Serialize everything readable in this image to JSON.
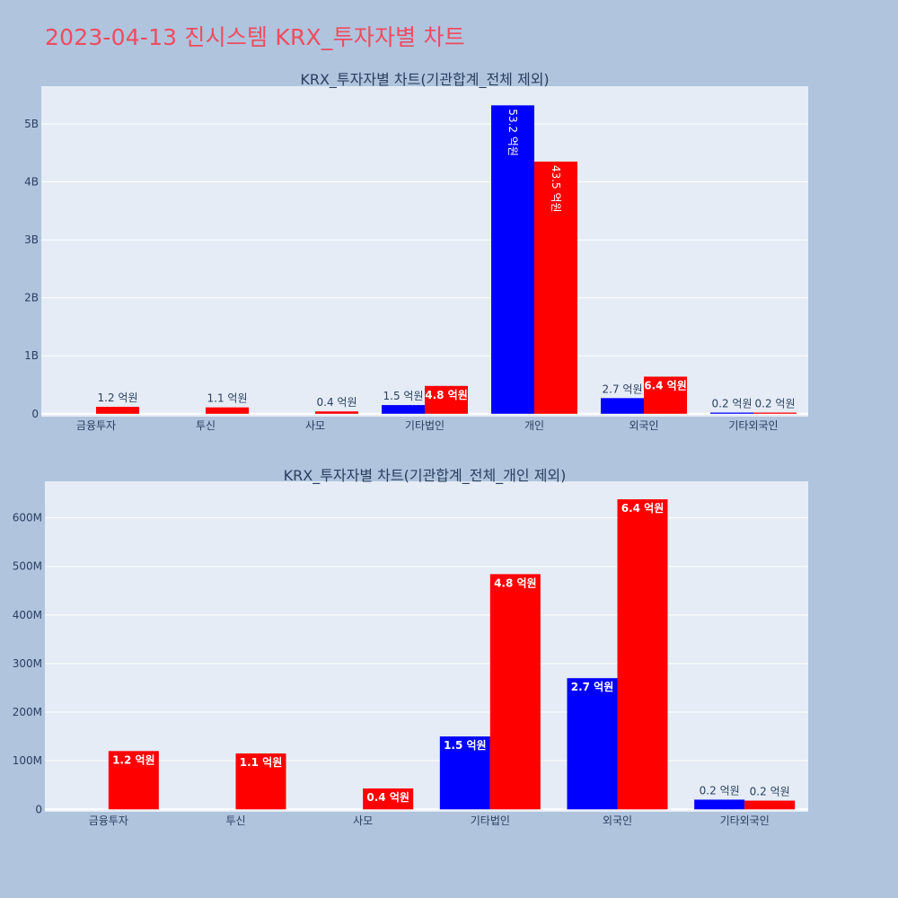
{
  "title": "2023-04-13 진시스템 KRX_투자자별 차트",
  "colors": {
    "background": "#b0c4de",
    "plot_bg": "#e5ecf6",
    "title": "#ef4b5f",
    "sell": "#0000ff",
    "buy": "#ff0000",
    "grid": "#ffffff",
    "text": "#2a3f5f"
  },
  "chart_data": [
    {
      "type": "bar",
      "title": "KRX_투자자별 차트(기관합계_전체 제외)",
      "categories": [
        "금융투자",
        "투신",
        "사모",
        "기타법인",
        "개인",
        "외국인",
        "기타외국인"
      ],
      "yticks": [
        0,
        1000000000,
        2000000000,
        3000000000,
        4000000000,
        5000000000
      ],
      "ytick_labels": [
        "0",
        "1B",
        "2B",
        "3B",
        "4B",
        "5B"
      ],
      "ylim": [
        -50000000,
        5650000000
      ],
      "legend": "none",
      "series": [
        {
          "color": "#0000ff",
          "values": [
            0,
            0,
            0,
            150000000,
            5320000000,
            270000000,
            20000000
          ],
          "labels": [
            "",
            "",
            "",
            "1.5 억원",
            "53.2 억원",
            "2.7 억원",
            "0.2 억원"
          ]
        },
        {
          "color": "#ff0000",
          "values": [
            120000000,
            110000000,
            40000000,
            480000000,
            4350000000,
            640000000,
            20000000
          ],
          "labels": [
            "1.2 억원",
            "1.1 억원",
            "0.4 억원",
            "4.8 억원",
            "43.5 억원",
            "6.4 억원",
            "0.2 억원"
          ]
        }
      ]
    },
    {
      "type": "bar",
      "title": "KRX_투자자별 차트(기관합계_전체_개인 제외)",
      "categories": [
        "금융투자",
        "투신",
        "사모",
        "기타법인",
        "외국인",
        "기타외국인"
      ],
      "yticks": [
        0,
        100000000,
        200000000,
        300000000,
        400000000,
        500000000,
        600000000
      ],
      "ytick_labels": [
        "0",
        "100M",
        "200M",
        "300M",
        "400M",
        "500M",
        "600M"
      ],
      "ylim": [
        -5000000,
        675000000
      ],
      "legend": "none",
      "series": [
        {
          "color": "#0000ff",
          "values": [
            0,
            0,
            0,
            150000000,
            270000000,
            20000000
          ],
          "labels": [
            "",
            "",
            "",
            "1.5 억원",
            "2.7 억원",
            "0.2 억원"
          ]
        },
        {
          "color": "#ff0000",
          "values": [
            120000000,
            115000000,
            43000000,
            484000000,
            638000000,
            18000000
          ],
          "labels": [
            "1.2 억원",
            "1.1 억원",
            "0.4 억원",
            "4.8 억원",
            "6.4 억원",
            "0.2 억원"
          ]
        }
      ]
    }
  ]
}
